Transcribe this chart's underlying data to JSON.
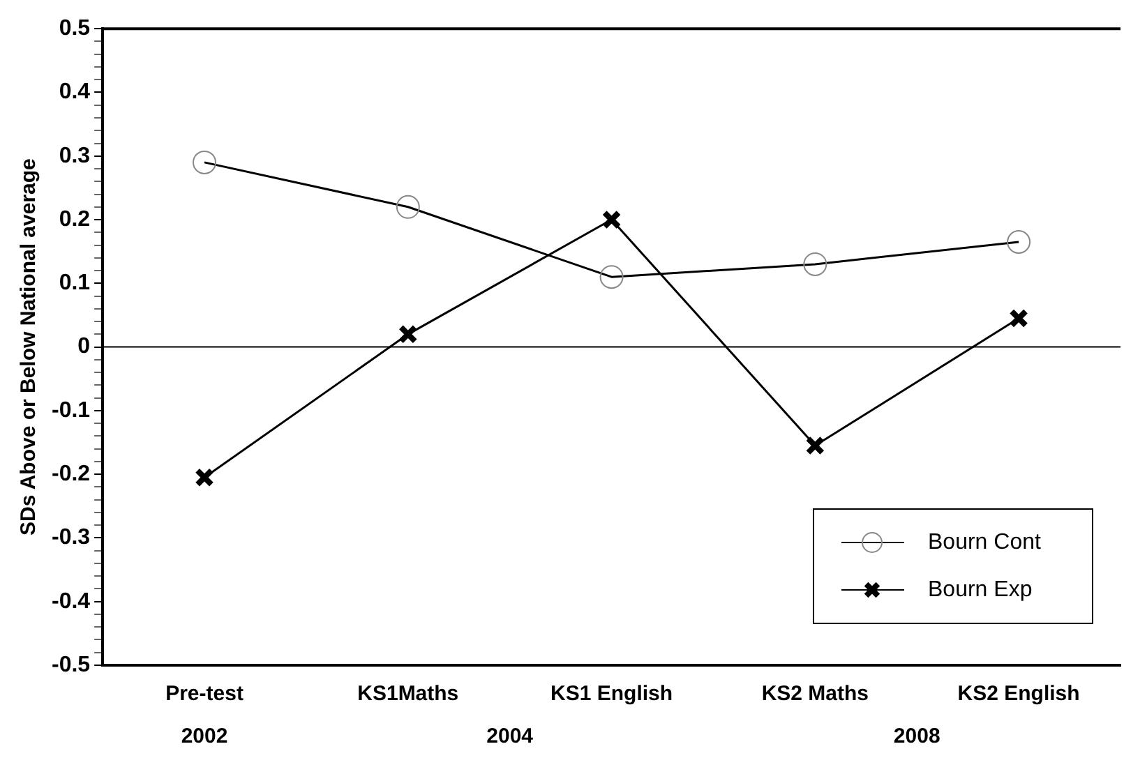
{
  "chart_data": {
    "type": "line",
    "ylabel": "SDs Above or Below National average",
    "categories": [
      "Pre-test",
      "KS1Maths",
      "KS1 English",
      "KS2 Maths",
      "KS2 English"
    ],
    "series": [
      {
        "name": "Bourn Cont",
        "color": "#000000",
        "marker": "circle",
        "values": [
          0.29,
          0.22,
          0.11,
          0.13,
          0.165
        ]
      },
      {
        "name": "Bourn Exp",
        "color": "#000000",
        "marker": "cross",
        "values": [
          -0.205,
          0.02,
          0.2,
          -0.155,
          0.045
        ]
      }
    ],
    "ylim": [
      -0.5,
      0.5
    ],
    "yticks": [
      -0.5,
      {
        "value": -0.48,
        "label": null
      },
      {
        "value": -0.46,
        "label": null
      },
      {
        "value": -0.44,
        "label": null
      },
      {
        "value": -0.42,
        "label": null
      },
      -0.4,
      {
        "value": -0.38,
        "label": null
      },
      {
        "value": -0.36,
        "label": null
      },
      {
        "value": -0.34,
        "label": null
      },
      {
        "value": -0.32,
        "label": null
      },
      -0.3,
      {
        "value": -0.28,
        "label": null
      },
      {
        "value": -0.26,
        "label": null
      },
      {
        "value": -0.24,
        "label": null
      },
      {
        "value": -0.22,
        "label": null
      },
      -0.2,
      {
        "value": -0.18,
        "label": null
      },
      {
        "value": -0.16,
        "label": null
      },
      {
        "value": -0.14,
        "label": null
      },
      {
        "value": -0.12,
        "label": null
      },
      -0.1,
      {
        "value": -0.08,
        "label": null
      },
      {
        "value": -0.06,
        "label": null
      },
      {
        "value": -0.04,
        "label": null
      },
      {
        "value": -0.02,
        "label": null
      },
      0,
      {
        "value": 0.02,
        "label": null
      },
      {
        "value": 0.04,
        "label": null
      },
      {
        "value": 0.06,
        "label": null
      },
      {
        "value": 0.08,
        "label": null
      },
      0.1,
      {
        "value": 0.12,
        "label": null
      },
      {
        "value": 0.14,
        "label": null
      },
      {
        "value": 0.16,
        "label": null
      },
      {
        "value": 0.18,
        "label": null
      },
      0.2,
      {
        "value": 0.22,
        "label": null
      },
      {
        "value": 0.24,
        "label": null
      },
      {
        "value": 0.26,
        "label": null
      },
      {
        "value": 0.28,
        "label": null
      },
      0.3,
      {
        "value": 0.32,
        "label": null
      },
      {
        "value": 0.34,
        "label": null
      },
      {
        "value": 0.36,
        "label": null
      },
      {
        "value": 0.38,
        "label": null
      },
      0.4,
      {
        "value": 0.42,
        "label": null
      },
      {
        "value": 0.44,
        "label": null
      },
      {
        "value": 0.46,
        "label": null
      },
      {
        "value": 0.48,
        "label": null
      },
      0.5
    ],
    "ref_lines": [
      {
        "axis": "y",
        "value": 0,
        "color": "#000000"
      }
    ],
    "annotations": [
      "2002",
      "2004",
      "2008"
    ],
    "grid": false,
    "legend": "bottom right",
    "line_style": "solid"
  }
}
